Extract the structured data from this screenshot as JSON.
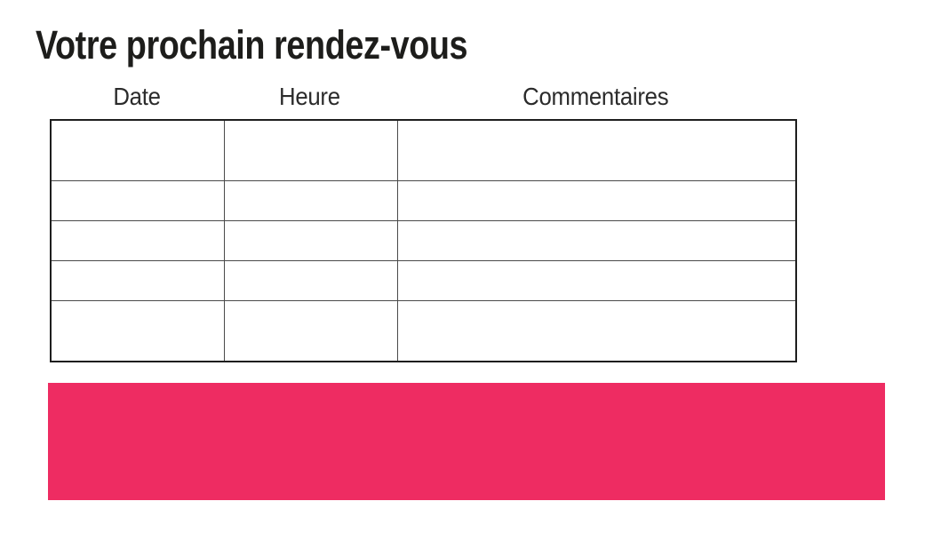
{
  "page": {
    "title": "Votre prochain rendez-vous",
    "background": "#ffffff"
  },
  "appointments_table": {
    "columns": [
      "Date",
      "Heure",
      "Commentaires"
    ],
    "rows": [
      [
        "",
        "",
        ""
      ],
      [
        "",
        "",
        ""
      ],
      [
        "",
        "",
        ""
      ],
      [
        "",
        "",
        ""
      ],
      [
        "",
        "",
        ""
      ]
    ]
  },
  "banner": {
    "text": "",
    "color": "#EE2C62"
  },
  "colors": {
    "title_text": "#1D1D1B",
    "header_text": "#2B2B2B",
    "table_outer_border": "#1E1E1E",
    "table_inner_border": "#4A4A4A",
    "banner_pink": "#EE2C62"
  }
}
